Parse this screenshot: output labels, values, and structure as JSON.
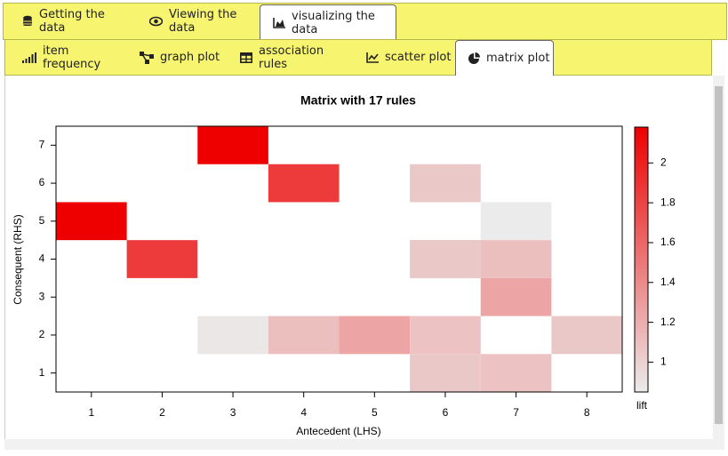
{
  "tabs": {
    "items": [
      "Getting the data",
      "Viewing the data",
      "visualizing the data"
    ],
    "active": 2
  },
  "subtabs": {
    "items": [
      "item frequency",
      "graph plot",
      "association rules",
      "scatter plot",
      "matrix plot"
    ],
    "active": 4
  },
  "chart_data": {
    "type": "heatmap",
    "title": "Matrix with 17 rules",
    "x_label": "Antecedent (LHS)",
    "y_label": "Consequent (RHS)",
    "xlim": [
      0.5,
      8.5
    ],
    "xticks": [
      1,
      2,
      3,
      4,
      5,
      6,
      7,
      8
    ],
    "ylim": [
      0.5,
      7.5
    ],
    "yticks": [
      1,
      2,
      3,
      4,
      5,
      6,
      7
    ],
    "x": [
      3,
      4,
      6,
      1,
      7,
      6,
      2,
      6,
      7,
      7,
      3,
      4,
      5,
      6,
      8,
      6,
      7
    ],
    "y": [
      7,
      6,
      6,
      5,
      5,
      4,
      4,
      4,
      4,
      3,
      2,
      2,
      2,
      2,
      2,
      1,
      1
    ],
    "values": [
      2.18,
      1.85,
      1.05,
      2.18,
      0.85,
      1.05,
      1.85,
      1.05,
      1.1,
      1.25,
      0.87,
      1.1,
      1.25,
      1.08,
      1.05,
      1.05,
      1.08
    ],
    "colorbar": {
      "label": "lift",
      "lim": [
        0.85,
        2.18
      ],
      "ticks": [
        1,
        1.2,
        1.4,
        1.6,
        1.8,
        2
      ],
      "colors": [
        "#ebebeb",
        "#ee0000"
      ]
    }
  }
}
